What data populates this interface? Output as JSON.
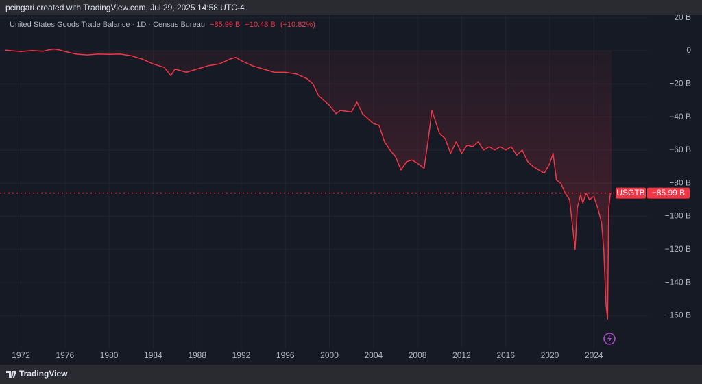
{
  "header": {
    "credit": "pcingari created with TradingView.com, Jul 29, 2025 14:58 UTC-4"
  },
  "footer": {
    "brand": "TradingView"
  },
  "chart_data": {
    "type": "line",
    "title": "United States Goods Trade Balance · 1D · Census Bureau",
    "change": {
      "value": 10.43,
      "label": "+10.43 B"
    },
    "change_pct": {
      "value": 10.82,
      "label": "(+10.82%)"
    },
    "x": [
      1970.6,
      1972,
      1973,
      1974,
      1974.5,
      1975,
      1975.5,
      1976,
      1977,
      1978,
      1979,
      1980,
      1981,
      1982,
      1983,
      1984,
      1985,
      1985.6,
      1986,
      1987,
      1988,
      1989,
      1990,
      1991,
      1991.5,
      1992,
      1993,
      1994,
      1995,
      1996,
      1997,
      1998,
      1998.5,
      1999,
      2000,
      2000.6,
      2001,
      2002,
      2002.5,
      2003,
      2004,
      2004.5,
      2005,
      2005.5,
      2006,
      2006.5,
      2007,
      2007.5,
      2008,
      2008.6,
      2009,
      2009.3,
      2009.6,
      2010,
      2010.5,
      2011,
      2011.5,
      2012,
      2012.5,
      2013,
      2013.5,
      2014,
      2014.5,
      2015,
      2015.5,
      2016,
      2016.5,
      2017,
      2017.5,
      2018,
      2018.5,
      2019,
      2019.5,
      2020,
      2020.3,
      2020.6,
      2021,
      2021.4,
      2021.8,
      2022.1,
      2022.3,
      2022.5,
      2022.8,
      2023,
      2023.3,
      2023.6,
      2024,
      2024.4,
      2024.7,
      2024.9,
      2025.1,
      2025.25,
      2025.35,
      2025.5,
      2025.6
    ],
    "series": [
      {
        "name": "USGTB",
        "color": "#f23645",
        "last_label": "−85.99 B",
        "values": [
          0.3,
          -0.5,
          0.1,
          -0.3,
          0.5,
          1.0,
          0.5,
          -0.5,
          -2,
          -2.5,
          -2,
          -2.2,
          -2,
          -3,
          -5,
          -8,
          -10,
          -15,
          -11,
          -13,
          -11,
          -9,
          -8,
          -5,
          -4,
          -6,
          -9,
          -11,
          -13,
          -13,
          -14,
          -17,
          -20,
          -27,
          -33,
          -38,
          -36,
          -37,
          -31,
          -38,
          -44,
          -45,
          -55,
          -60,
          -64,
          -72,
          -67,
          -66,
          -68,
          -71,
          -52,
          -36,
          -42,
          -50,
          -53,
          -62,
          -55,
          -62,
          -57,
          -58,
          -55,
          -60,
          -58,
          -60,
          -58,
          -60,
          -58,
          -63,
          -60,
          -67,
          -70,
          -72,
          -74,
          -68,
          -62,
          -78,
          -80,
          -86,
          -90,
          -108,
          -120,
          -95,
          -87,
          -92,
          -86,
          -90,
          -88,
          -96,
          -104,
          -120,
          -153,
          -162,
          -95,
          -86,
          -85.99
        ]
      }
    ],
    "xlim": [
      1970.1,
      2028.9
    ],
    "ylim": [
      -180,
      22
    ],
    "xticks": [
      1972,
      1976,
      1980,
      1984,
      1988,
      1992,
      1996,
      2000,
      2004,
      2008,
      2012,
      2016,
      2020,
      2024
    ],
    "yticks": [
      {
        "value": 20,
        "label": "20 B"
      },
      0,
      {
        "value": -20,
        "label": "−20 B"
      },
      {
        "value": -40,
        "label": "−40 B"
      },
      {
        "value": -60,
        "label": "−60 B"
      },
      {
        "value": -80,
        "label": "−80 B"
      },
      {
        "value": -100,
        "label": "−100 B"
      },
      {
        "value": -120,
        "label": "−120 B"
      },
      {
        "value": -140,
        "label": "−140 B"
      },
      {
        "value": -160,
        "label": "−160 B"
      }
    ],
    "grid": true
  }
}
